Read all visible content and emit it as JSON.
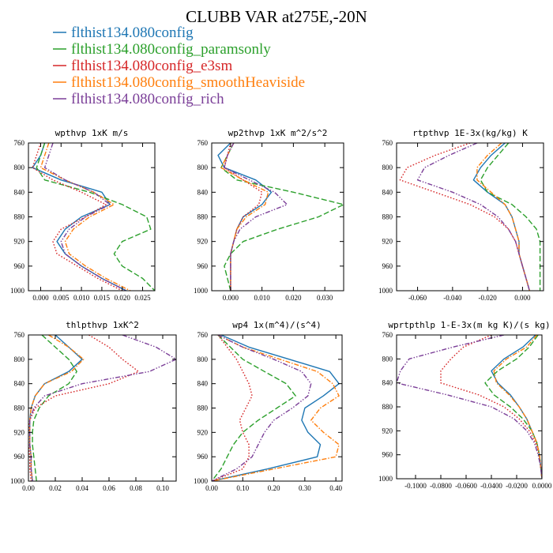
{
  "figure": {
    "title": "CLUBB VAR at275E,-20N"
  },
  "legend": [
    {
      "name": "flthist134.080config",
      "color": "#1f77b4",
      "dash": "solid"
    },
    {
      "name": "flthist134.080config_paramsonly",
      "color": "#2ca02c",
      "dash": "longdash"
    },
    {
      "name": "flthist134.080config_e3sm",
      "color": "#d62728",
      "dash": "dot"
    },
    {
      "name": "flthist134.080config_smoothHeaviside",
      "color": "#ff7f0e",
      "dash": "dashdot"
    },
    {
      "name": "flthist134.080config_rich",
      "color": "#7b3f98",
      "dash": "dashdotdot"
    }
  ],
  "chart_data": [
    {
      "type": "line",
      "title": "wpthvp  1xK m/s",
      "xlim": [
        -0.003,
        0.028
      ],
      "ylim": [
        760,
        1000
      ],
      "y_inverted": true,
      "xticks": [
        "0.000",
        "0.005",
        "0.010",
        "0.015",
        "0.020",
        "0.025"
      ],
      "xtick_values": [
        0.0,
        0.005,
        0.01,
        0.015,
        0.02,
        0.025
      ],
      "yticks": [
        760,
        800,
        840,
        880,
        920,
        960,
        1000
      ],
      "y": [
        760,
        780,
        800,
        820,
        840,
        860,
        880,
        900,
        920,
        940,
        960,
        980,
        1000
      ],
      "series": [
        {
          "values": [
            0.001,
            0.0,
            -0.002,
            0.005,
            0.015,
            0.017,
            0.01,
            0.006,
            0.004,
            0.006,
            0.01,
            0.015,
            0.021
          ]
        },
        {
          "values": [
            0.001,
            0.0,
            -0.001,
            0.001,
            0.012,
            0.02,
            0.026,
            0.027,
            0.02,
            0.018,
            0.02,
            0.025,
            0.028
          ]
        },
        {
          "values": [
            0.0,
            -0.001,
            -0.002,
            0.003,
            0.01,
            0.016,
            0.011,
            0.005,
            0.003,
            0.004,
            0.009,
            0.014,
            0.02
          ]
        },
        {
          "values": [
            0.002,
            0.001,
            0.0,
            0.006,
            0.013,
            0.018,
            0.012,
            0.008,
            0.006,
            0.007,
            0.011,
            0.016,
            0.022
          ]
        },
        {
          "values": [
            0.003,
            0.002,
            0.001,
            0.006,
            0.013,
            0.017,
            0.011,
            0.007,
            0.005,
            0.006,
            0.01,
            0.015,
            0.021
          ]
        }
      ]
    },
    {
      "type": "line",
      "title": "wp2thvp  1xK m^2/s^2",
      "xlim": [
        -0.006,
        0.036
      ],
      "ylim": [
        760,
        1000
      ],
      "y_inverted": true,
      "xticks": [
        "0.000",
        "0.010",
        "0.020",
        "0.030"
      ],
      "xtick_values": [
        0.0,
        0.01,
        0.02,
        0.03
      ],
      "yticks": [
        760,
        800,
        840,
        880,
        920,
        960,
        1000
      ],
      "y": [
        760,
        780,
        800,
        820,
        840,
        860,
        880,
        900,
        920,
        940,
        960,
        980,
        1000
      ],
      "series": [
        {
          "values": [
            0.0,
            -0.004,
            -0.002,
            0.008,
            0.013,
            0.01,
            0.004,
            0.002,
            0.001,
            0.0,
            0.0,
            0.0,
            0.0
          ]
        },
        {
          "values": [
            0.001,
            -0.001,
            -0.003,
            0.002,
            0.02,
            0.036,
            0.028,
            0.015,
            0.004,
            0.0,
            -0.002,
            -0.001,
            0.0
          ]
        },
        {
          "values": [
            0.0,
            -0.001,
            -0.002,
            0.004,
            0.01,
            0.009,
            0.004,
            0.002,
            0.001,
            0.0,
            0.0,
            0.0,
            0.0
          ]
        },
        {
          "values": [
            0.001,
            -0.001,
            -0.003,
            0.004,
            0.012,
            0.011,
            0.005,
            0.002,
            0.001,
            0.0,
            0.0,
            0.0,
            0.0
          ]
        },
        {
          "values": [
            0.001,
            -0.001,
            -0.002,
            0.006,
            0.014,
            0.018,
            0.008,
            0.003,
            0.001,
            0.0,
            0.0,
            0.0,
            0.0
          ]
        }
      ]
    },
    {
      "type": "line",
      "title": "rtpthvp  1E-3x(kg/kg) K",
      "xlim": [
        -0.072,
        0.012
      ],
      "ylim": [
        760,
        1000
      ],
      "y_inverted": true,
      "xticks": [
        "-0.060",
        "-0.040",
        "-0.020",
        "0.000"
      ],
      "xtick_values": [
        -0.06,
        -0.04,
        -0.02,
        0.0
      ],
      "yticks": [
        760,
        800,
        840,
        880,
        920,
        960,
        1000
      ],
      "y": [
        760,
        780,
        800,
        820,
        840,
        860,
        880,
        900,
        920,
        940,
        960,
        980,
        1000
      ],
      "series": [
        {
          "values": [
            -0.01,
            -0.018,
            -0.024,
            -0.028,
            -0.02,
            -0.01,
            -0.006,
            -0.004,
            -0.002,
            -0.002,
            0.0,
            0.002,
            0.004
          ]
        },
        {
          "values": [
            -0.008,
            -0.014,
            -0.02,
            -0.024,
            -0.02,
            -0.006,
            0.002,
            0.008,
            0.01,
            0.01,
            0.01,
            0.01,
            0.01
          ]
        },
        {
          "values": [
            -0.03,
            -0.05,
            -0.066,
            -0.07,
            -0.05,
            -0.03,
            -0.016,
            -0.008,
            -0.004,
            -0.002,
            0.0,
            0.002,
            0.004
          ]
        },
        {
          "values": [
            -0.012,
            -0.02,
            -0.026,
            -0.026,
            -0.018,
            -0.01,
            -0.006,
            -0.004,
            -0.002,
            -0.002,
            0.0,
            0.002,
            0.004
          ]
        },
        {
          "values": [
            -0.026,
            -0.042,
            -0.056,
            -0.06,
            -0.04,
            -0.024,
            -0.014,
            -0.008,
            -0.004,
            -0.002,
            0.0,
            0.002,
            0.004
          ]
        }
      ]
    },
    {
      "type": "line",
      "title": "thlpthvp  1xK^2",
      "xlim": [
        0.0,
        0.11
      ],
      "ylim": [
        760,
        1000
      ],
      "y_inverted": true,
      "xticks": [
        "0.00",
        "0.02",
        "0.04",
        "0.06",
        "0.08",
        "0.10"
      ],
      "xtick_values": [
        0.0,
        0.02,
        0.04,
        0.06,
        0.08,
        0.1
      ],
      "yticks": [
        760,
        800,
        840,
        880,
        920,
        960,
        1000
      ],
      "y": [
        760,
        780,
        800,
        820,
        840,
        860,
        880,
        900,
        920,
        940,
        960,
        980,
        1000
      ],
      "series": [
        {
          "values": [
            0.02,
            0.03,
            0.04,
            0.03,
            0.012,
            0.005,
            0.002,
            0.001,
            0.001,
            0.001,
            0.002,
            0.002,
            0.003
          ]
        },
        {
          "values": [
            0.01,
            0.02,
            0.03,
            0.036,
            0.03,
            0.015,
            0.008,
            0.004,
            0.003,
            0.003,
            0.004,
            0.005,
            0.006
          ]
        },
        {
          "values": [
            0.045,
            0.06,
            0.07,
            0.082,
            0.06,
            0.02,
            0.005,
            0.001,
            0.0,
            0.0,
            0.001,
            0.001,
            0.002
          ]
        },
        {
          "values": [
            0.015,
            0.03,
            0.041,
            0.032,
            0.012,
            0.005,
            0.002,
            0.001,
            0.001,
            0.001,
            0.002,
            0.002,
            0.003
          ]
        },
        {
          "values": [
            0.07,
            0.095,
            0.11,
            0.09,
            0.04,
            0.012,
            0.004,
            0.001,
            0.001,
            0.001,
            0.002,
            0.002,
            0.003
          ]
        }
      ]
    },
    {
      "type": "line",
      "title": "wp4  1x(m^4)/(s^4)",
      "xlim": [
        0.0,
        0.42
      ],
      "ylim": [
        760,
        1000
      ],
      "y_inverted": true,
      "xticks": [
        "0.00",
        "0.10",
        "0.20",
        "0.30",
        "0.40"
      ],
      "xtick_values": [
        0.0,
        0.1,
        0.2,
        0.3,
        0.4
      ],
      "yticks": [
        760,
        800,
        840,
        880,
        920,
        960,
        1000
      ],
      "y": [
        760,
        780,
        800,
        820,
        840,
        860,
        880,
        900,
        920,
        940,
        960,
        980,
        1000
      ],
      "series": [
        {
          "values": [
            0.03,
            0.12,
            0.25,
            0.38,
            0.41,
            0.36,
            0.3,
            0.29,
            0.31,
            0.35,
            0.34,
            0.18,
            0.0
          ]
        },
        {
          "values": [
            0.02,
            0.06,
            0.1,
            0.17,
            0.24,
            0.27,
            0.21,
            0.15,
            0.1,
            0.07,
            0.05,
            0.03,
            0.0
          ]
        },
        {
          "values": [
            0.02,
            0.05,
            0.08,
            0.1,
            0.12,
            0.13,
            0.11,
            0.09,
            0.1,
            0.12,
            0.12,
            0.1,
            0.0
          ]
        },
        {
          "values": [
            0.02,
            0.1,
            0.22,
            0.34,
            0.39,
            0.41,
            0.35,
            0.32,
            0.36,
            0.41,
            0.4,
            0.2,
            0.0
          ]
        },
        {
          "values": [
            0.02,
            0.1,
            0.2,
            0.29,
            0.32,
            0.31,
            0.26,
            0.2,
            0.17,
            0.15,
            0.13,
            0.08,
            0.0
          ]
        }
      ]
    },
    {
      "type": "line",
      "title": "wprtpthlp  1-E-3x(m kg K)/(s kg)",
      "xlim": [
        -0.115,
        0.0
      ],
      "ylim": [
        760,
        1000
      ],
      "y_inverted": true,
      "xticks": [
        "-0.1000",
        "-0.0800",
        "-0.0600",
        "-0.0400",
        "-0.0200",
        "0.0000"
      ],
      "xtick_values": [
        -0.1,
        -0.08,
        -0.06,
        -0.04,
        -0.02,
        0.0
      ],
      "yticks": [
        760,
        800,
        840,
        880,
        920,
        960,
        1000
      ],
      "y": [
        760,
        780,
        800,
        820,
        840,
        860,
        880,
        900,
        920,
        940,
        960,
        980,
        1000
      ],
      "series": [
        {
          "values": [
            -0.005,
            -0.015,
            -0.03,
            -0.04,
            -0.035,
            -0.025,
            -0.018,
            -0.012,
            -0.008,
            -0.004,
            -0.002,
            -0.001,
            0.0
          ]
        },
        {
          "values": [
            -0.003,
            -0.01,
            -0.02,
            -0.035,
            -0.045,
            -0.038,
            -0.025,
            -0.015,
            -0.008,
            -0.004,
            -0.002,
            -0.001,
            0.0
          ]
        },
        {
          "values": [
            -0.04,
            -0.062,
            -0.072,
            -0.08,
            -0.08,
            -0.05,
            -0.03,
            -0.018,
            -0.01,
            -0.005,
            -0.002,
            -0.001,
            0.0
          ]
        },
        {
          "values": [
            -0.004,
            -0.012,
            -0.028,
            -0.038,
            -0.036,
            -0.026,
            -0.018,
            -0.012,
            -0.008,
            -0.004,
            -0.002,
            -0.001,
            0.0
          ]
        },
        {
          "values": [
            -0.03,
            -0.07,
            -0.105,
            -0.112,
            -0.115,
            -0.075,
            -0.04,
            -0.022,
            -0.012,
            -0.006,
            -0.003,
            -0.001,
            0.0
          ]
        }
      ]
    }
  ]
}
